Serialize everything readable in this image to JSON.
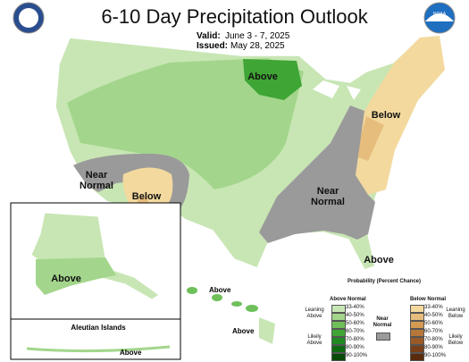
{
  "header": {
    "title": "6-10 Day Precipitation Outlook",
    "valid_label": "Valid:",
    "valid": "June 3 - 7, 2025",
    "issued_label": "Issued:",
    "issued": "May 28, 2025",
    "noaa_logo": "NOAA"
  },
  "map_labels": [
    "Above",
    "Below",
    "Near Normal",
    "Below",
    "Near Normal",
    "Above"
  ],
  "alaska": {
    "label": "Above"
  },
  "aleutian": {
    "title": "Aleutian Islands",
    "label": "Above"
  },
  "hawaii": {
    "labels": [
      "Above",
      "Above"
    ]
  },
  "legend": {
    "title": "Probability (Percent Chance)",
    "above": {
      "heading": "Above Normal",
      "leaning": "Leaning Above",
      "likely": "Likely Above",
      "items": [
        {
          "range": "33-40%",
          "color": "#c8e6b4"
        },
        {
          "range": "40-50%",
          "color": "#a3d68c"
        },
        {
          "range": "50-60%",
          "color": "#6fc05a"
        },
        {
          "range": "60-70%",
          "color": "#3fa535"
        },
        {
          "range": "70-80%",
          "color": "#1e8a20"
        },
        {
          "range": "80-90%",
          "color": "#0e6a12"
        },
        {
          "range": "90-100%",
          "color": "#084a0a"
        }
      ]
    },
    "near": {
      "heading": "Near Normal",
      "color": "#9a9a9a"
    },
    "below": {
      "heading": "Below Normal",
      "leaning": "Leaning Below",
      "likely": "Likely Below",
      "items": [
        {
          "range": "33-40%",
          "color": "#f3d99e"
        },
        {
          "range": "40-50%",
          "color": "#e6bd7c"
        },
        {
          "range": "50-60%",
          "color": "#d49a52"
        },
        {
          "range": "60-70%",
          "color": "#b8773a"
        },
        {
          "range": "70-80%",
          "color": "#9a5a28"
        },
        {
          "range": "80-90%",
          "color": "#7a3e18"
        },
        {
          "range": "90-100%",
          "color": "#5a2a0c"
        }
      ]
    }
  }
}
